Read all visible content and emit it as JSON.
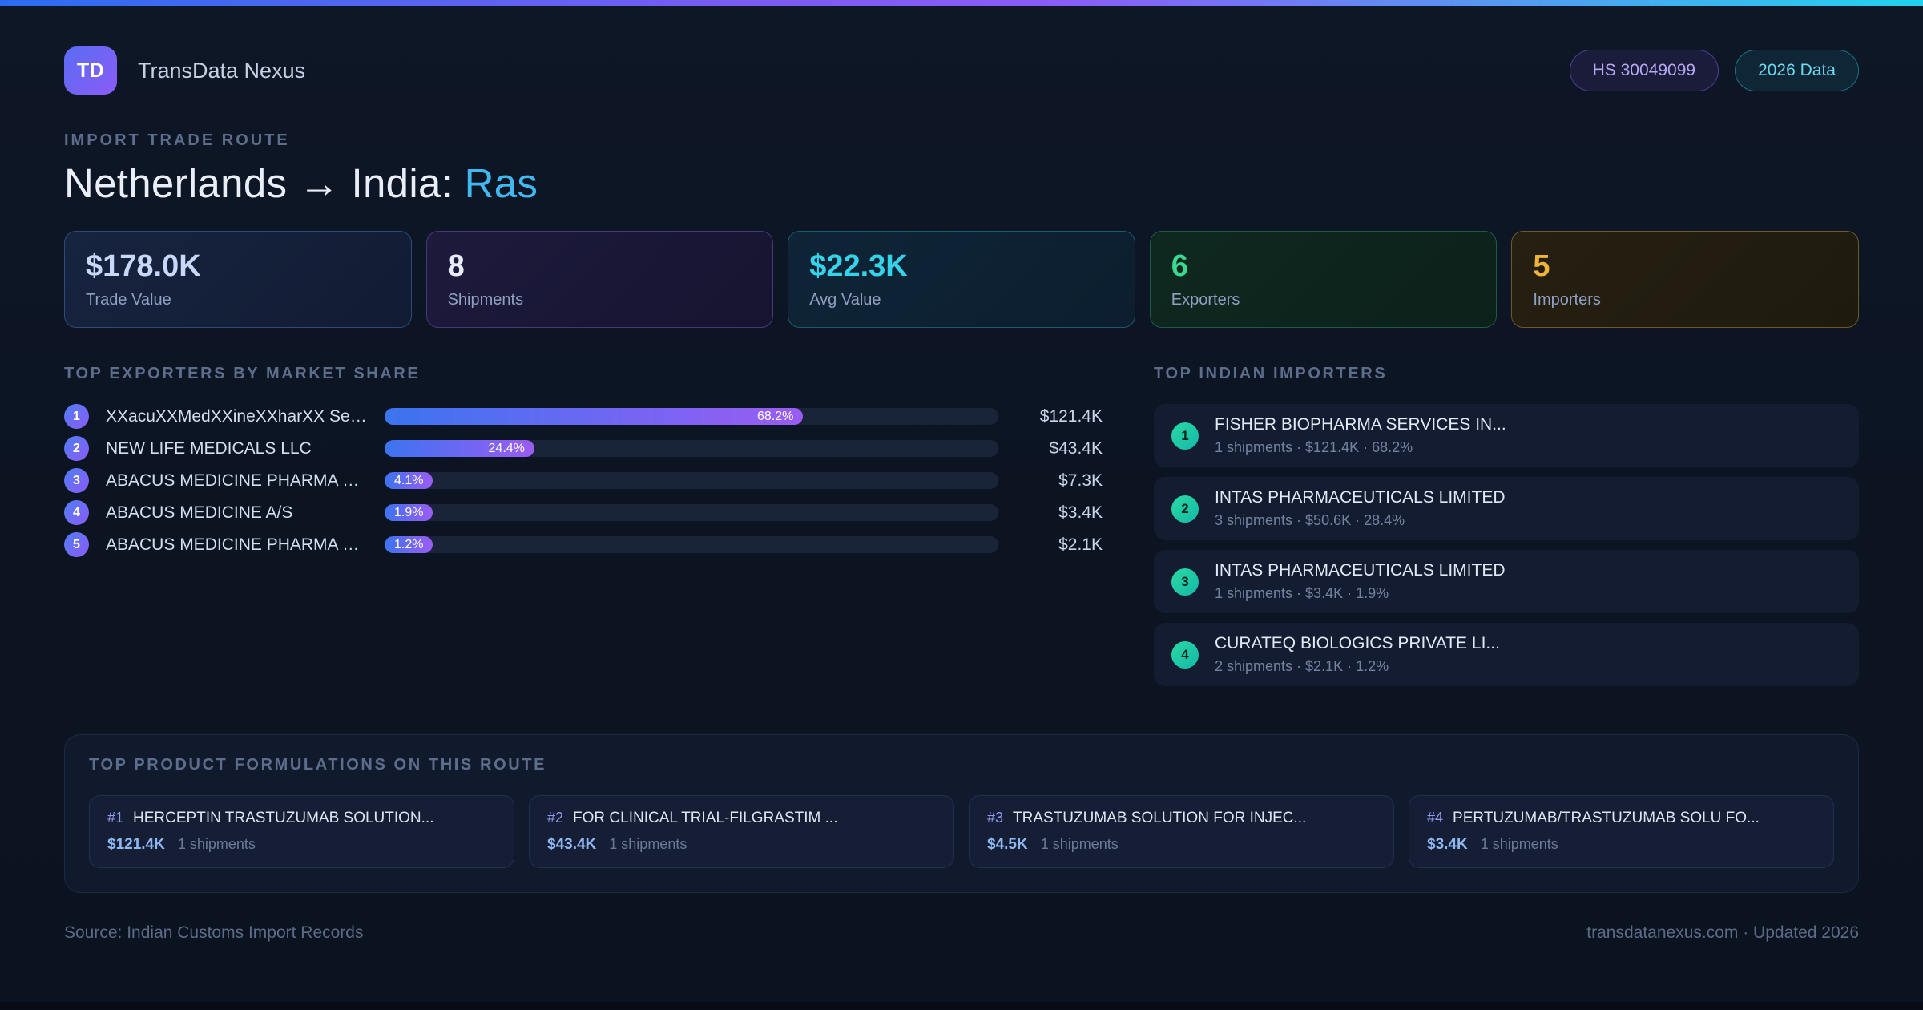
{
  "colors": {
    "accent_blue": "#3b82f6",
    "accent_purple": "#8b5cf6",
    "accent_cyan": "#22d3ee",
    "accent_green": "#34d399",
    "accent_amber": "#f0b43a",
    "background": "#0d1524"
  },
  "header": {
    "logo_text": "TD",
    "app_name": "TransData Nexus",
    "hs_badge": "HS 30049099",
    "year_badge": "2026 Data"
  },
  "hero": {
    "eyebrow": "IMPORT TRADE ROUTE",
    "title_prefix": "Netherlands → India: ",
    "title_highlight": "Ras"
  },
  "stats": [
    {
      "value": "$178.0K",
      "label": "Trade Value"
    },
    {
      "value": "8",
      "label": "Shipments"
    },
    {
      "value": "$22.3K",
      "label": "Avg Value"
    },
    {
      "value": "6",
      "label": "Exporters"
    },
    {
      "value": "5",
      "label": "Importers"
    }
  ],
  "exporters": {
    "heading": "TOP EXPORTERS BY MARKET SHARE",
    "rows": [
      {
        "rank": "1",
        "name": "XXacuXXMedXXineXXharXX SeX...",
        "share_pct": 68.2,
        "share_label": "68.2%",
        "value": "$121.4K"
      },
      {
        "rank": "2",
        "name": "NEW LIFE MEDICALS LLC",
        "share_pct": 24.4,
        "share_label": "24.4%",
        "value": "$43.4K"
      },
      {
        "rank": "3",
        "name": "ABACUS MEDICINE PHARMA SER...",
        "share_pct": 4.1,
        "share_label": "4.1%",
        "value": "$7.3K"
      },
      {
        "rank": "4",
        "name": "ABACUS MEDICINE A/S",
        "share_pct": 1.9,
        "share_label": "1.9%",
        "value": "$3.4K"
      },
      {
        "rank": "5",
        "name": "ABACUS MEDICINE PHARMA SER...",
        "share_pct": 1.2,
        "share_label": "1.2%",
        "value": "$2.1K"
      }
    ]
  },
  "importers": {
    "heading": "TOP INDIAN IMPORTERS",
    "rows": [
      {
        "rank": "1",
        "name": "FISHER BIOPHARMA SERVICES IN...",
        "meta": "1 shipments · $121.4K · 68.2%"
      },
      {
        "rank": "2",
        "name": "INTAS PHARMACEUTICALS LIMITED",
        "meta": "3 shipments · $50.6K · 28.4%"
      },
      {
        "rank": "3",
        "name": "INTAS PHARMACEUTICALS LIMITED",
        "meta": "1 shipments · $3.4K · 1.9%"
      },
      {
        "rank": "4",
        "name": "CURATEQ BIOLOGICS PRIVATE LI...",
        "meta": "2 shipments · $2.1K · 1.2%"
      }
    ]
  },
  "products": {
    "heading": "TOP PRODUCT FORMULATIONS ON THIS ROUTE",
    "cards": [
      {
        "rank": "#1",
        "name": "HERCEPTIN TRASTUZUMAB SOLUTION...",
        "value": "$121.4K",
        "meta": "1 shipments"
      },
      {
        "rank": "#2",
        "name": "FOR CLINICAL TRIAL-FILGRASTIM ...",
        "value": "$43.4K",
        "meta": "1 shipments"
      },
      {
        "rank": "#3",
        "name": "TRASTUZUMAB SOLUTION FOR INJEC...",
        "value": "$4.5K",
        "meta": "1 shipments"
      },
      {
        "rank": "#4",
        "name": "PERTUZUMAB/TRASTUZUMAB SOLU FO...",
        "value": "$3.4K",
        "meta": "1 shipments"
      }
    ]
  },
  "footer": {
    "source": "Source: Indian Customs Import Records",
    "site": "transdatanexus.com · Updated 2026"
  }
}
